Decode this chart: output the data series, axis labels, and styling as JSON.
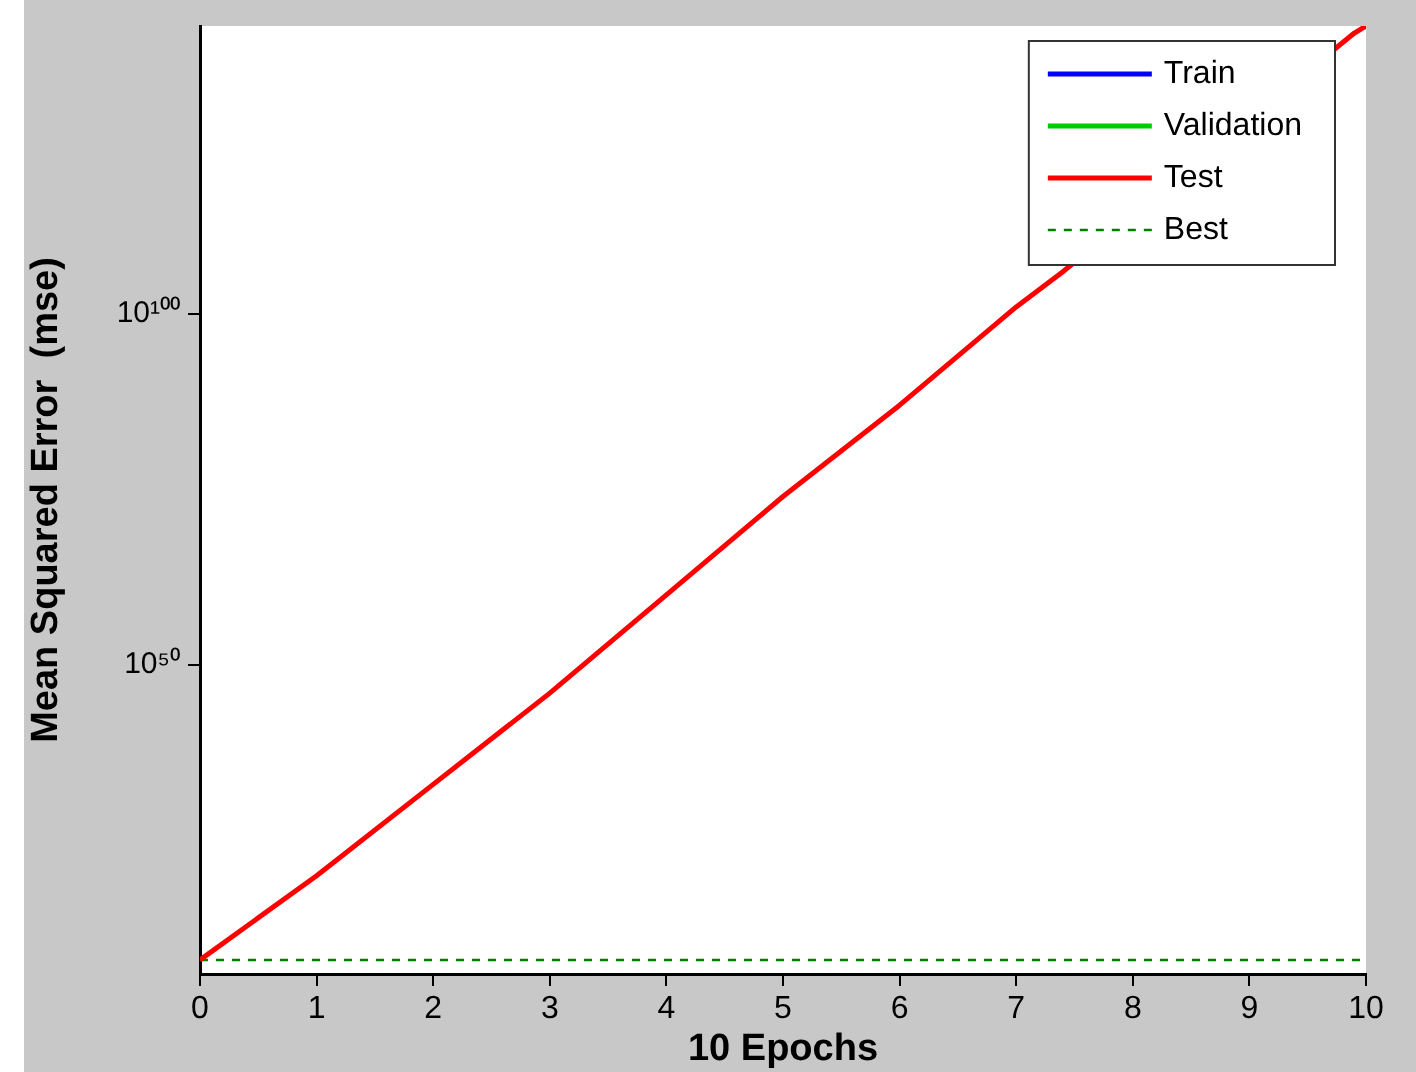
{
  "chart_data": {
    "type": "line",
    "xlabel": "10 Epochs",
    "ylabel": "Mean Squared Error  (mse)",
    "log": "y",
    "xlim": [
      0,
      10
    ],
    "ylim": [
      1000000.0,
      1e+141
    ],
    "xticks": [
      0,
      1,
      2,
      3,
      4,
      5,
      6,
      7,
      8,
      9,
      10
    ],
    "yticks": [
      {
        "value": 1e+50,
        "label": "10⁵⁰"
      },
      {
        "value": 1e+100,
        "label": "10¹⁰⁰"
      }
    ],
    "legend": "top right",
    "series": [
      {
        "name": "Train",
        "color": "#0000ff"
      },
      {
        "name": "Validation",
        "color": "#00cc00"
      },
      {
        "name": "Test",
        "color": "#ff0000",
        "x": [
          0,
          1,
          2,
          3,
          4,
          5,
          6,
          7,
          7.4,
          9.9,
          10
        ],
        "values": [
          100000000.0,
          1e+20,
          1e+33,
          1e+46,
          1e+60,
          1e+74,
          1e+87,
          1e+101,
          1e+106,
          1e+140,
          1e+141
        ]
      },
      {
        "name": "Best",
        "color": "#008000",
        "line_style": "dashed",
        "x": [
          0,
          10
        ],
        "values": [
          100000000.0,
          100000000.0
        ]
      }
    ]
  }
}
